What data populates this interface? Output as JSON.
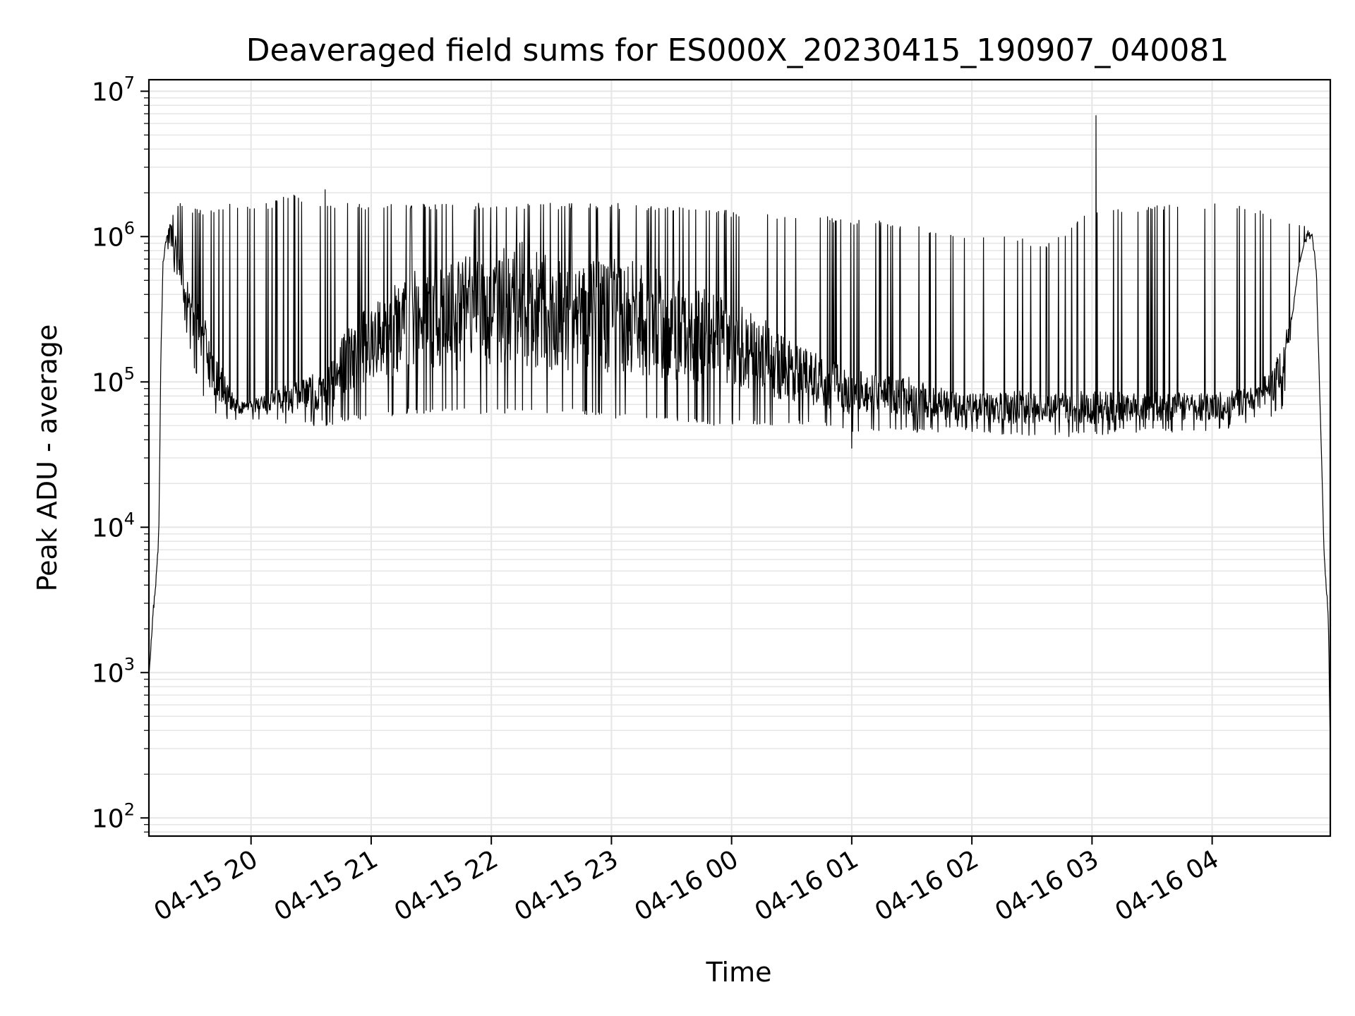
{
  "chart_data": {
    "type": "line",
    "title": "Deaveraged field sums for ES000X_20230415_190907_040081",
    "xlabel": "Time",
    "ylabel": "Peak ADU - average",
    "yscale": "log",
    "ylim": [
      75,
      12000000
    ],
    "xlim": [
      "2023-04-15 19:09",
      "2023-04-16 04:59"
    ],
    "grid": true,
    "line_color": "#000000",
    "grid_color": "#e6e6e6",
    "x_ticks": [
      {
        "label": "04-15 20",
        "value": "2023-04-15 20:00"
      },
      {
        "label": "04-15 21",
        "value": "2023-04-15 21:00"
      },
      {
        "label": "04-15 22",
        "value": "2023-04-15 22:00"
      },
      {
        "label": "04-15 23",
        "value": "2023-04-15 23:00"
      },
      {
        "label": "04-16 00",
        "value": "2023-04-16 00:00"
      },
      {
        "label": "04-16 01",
        "value": "2023-04-16 01:00"
      },
      {
        "label": "04-16 02",
        "value": "2023-04-16 02:00"
      },
      {
        "label": "04-16 03",
        "value": "2023-04-16 03:00"
      },
      {
        "label": "04-16 04",
        "value": "2023-04-16 04:00"
      }
    ],
    "y_ticks": [
      {
        "base": "10",
        "exp": "2",
        "value": 100
      },
      {
        "base": "10",
        "exp": "3",
        "value": 1000
      },
      {
        "base": "10",
        "exp": "4",
        "value": 10000
      },
      {
        "base": "10",
        "exp": "5",
        "value": 100000
      },
      {
        "base": "10",
        "exp": "6",
        "value": 1000000
      },
      {
        "base": "10",
        "exp": "7",
        "value": 10000000
      }
    ],
    "series": [
      {
        "x": [
          "2023-04-15 19:09",
          "2023-04-15 19:10",
          "2023-04-15 19:11",
          "2023-04-15 19:12",
          "2023-04-15 19:13",
          "2023-04-15 19:14",
          "2023-04-15 19:15",
          "2023-04-15 19:16",
          "2023-04-15 19:18",
          "2023-04-15 19:20",
          "2023-04-15 19:22",
          "2023-04-15 19:25",
          "2023-04-15 19:28",
          "2023-04-15 19:32",
          "2023-04-15 19:36",
          "2023-04-15 19:40",
          "2023-04-15 19:45",
          "2023-04-15 19:50",
          "2023-04-15 19:55",
          "2023-04-15 20:00",
          "2023-04-15 20:10",
          "2023-04-15 20:20",
          "2023-04-15 20:30",
          "2023-04-15 20:40",
          "2023-04-15 20:50",
          "2023-04-15 21:00",
          "2023-04-15 21:15",
          "2023-04-15 21:30",
          "2023-04-15 21:45",
          "2023-04-15 22:00",
          "2023-04-15 22:15",
          "2023-04-15 22:30",
          "2023-04-15 22:45",
          "2023-04-15 23:00",
          "2023-04-15 23:15",
          "2023-04-15 23:30",
          "2023-04-15 23:45",
          "2023-04-16 00:00",
          "2023-04-16 00:15",
          "2023-04-16 00:30",
          "2023-04-16 00:45",
          "2023-04-16 01:00",
          "2023-04-16 01:15",
          "2023-04-16 01:30",
          "2023-04-16 01:45",
          "2023-04-16 02:00",
          "2023-04-16 02:20",
          "2023-04-16 02:40",
          "2023-04-16 03:00",
          "2023-04-16 03:20",
          "2023-04-16 03:40",
          "2023-04-16 03:55",
          "2023-04-16 04:05",
          "2023-04-16 04:15",
          "2023-04-16 04:25",
          "2023-04-16 04:35",
          "2023-04-16 04:40",
          "2023-04-16 04:43",
          "2023-04-16 04:46",
          "2023-04-16 04:48",
          "2023-04-16 04:50",
          "2023-04-16 04:52",
          "2023-04-16 04:54",
          "2023-04-16 04:56",
          "2023-04-16 04:58",
          "2023-04-16 04:59"
        ],
        "baseline": [
          1000,
          1500,
          2500,
          3500,
          5000,
          10000,
          150000,
          650000,
          1000000,
          1250000,
          900000,
          700000,
          500000,
          400000,
          250000,
          150000,
          110000,
          80000,
          70000,
          70000,
          80000,
          85000,
          95000,
          110000,
          200000,
          250000,
          350000,
          400000,
          450000,
          500000,
          550000,
          450000,
          400000,
          450000,
          400000,
          350000,
          300000,
          250000,
          200000,
          150000,
          120000,
          100000,
          95000,
          90000,
          80000,
          75000,
          75000,
          75000,
          75000,
          75000,
          75000,
          75000,
          75000,
          80000,
          90000,
          150000,
          300000,
          600000,
          900000,
          1050000,
          1000000,
          600000,
          60000,
          6000,
          2500,
          300
        ],
        "upper_envelope": [
          1000,
          1500,
          2500,
          3500,
          5000,
          10000,
          150000,
          650000,
          1000000,
          1300000,
          1800000,
          1700000,
          1600000,
          1600000,
          1500000,
          1600000,
          1700000,
          1700000,
          1600000,
          1700000,
          1700000,
          2000000,
          1700000,
          1700000,
          1700000,
          1700000,
          1700000,
          1700000,
          1700000,
          1700000,
          1700000,
          1700000,
          1700000,
          1700000,
          1700000,
          1600000,
          1600000,
          1500000,
          1500000,
          1400000,
          1400000,
          1300000,
          1300000,
          1200000,
          1100000,
          1000000,
          1000000,
          900000,
          1600000,
          1600000,
          1700000,
          1700000,
          1700000,
          1700000,
          1500000,
          1400000,
          1300000,
          1300000,
          1300000,
          1100000,
          1000000,
          600000,
          60000,
          6000,
          2500,
          300
        ],
        "lower_envelope": [
          1000,
          1500,
          2500,
          3500,
          5000,
          10000,
          150000,
          650000,
          800000,
          700000,
          500000,
          350000,
          200000,
          120000,
          80000,
          65000,
          55000,
          55000,
          55000,
          55000,
          55000,
          50000,
          50000,
          50000,
          55000,
          55000,
          60000,
          60000,
          60000,
          60000,
          60000,
          60000,
          60000,
          55000,
          55000,
          55000,
          50000,
          50000,
          50000,
          50000,
          50000,
          45000,
          45000,
          45000,
          45000,
          45000,
          42000,
          42000,
          42000,
          45000,
          45000,
          45000,
          45000,
          50000,
          55000,
          60000,
          250000,
          600000,
          900000,
          1050000,
          1000000,
          600000,
          60000,
          6000,
          2500,
          300
        ]
      }
    ],
    "annotations": [
      {
        "type": "spike",
        "x": "2023-04-16 03:02",
        "y": 6800000
      },
      {
        "type": "spike",
        "x": "2023-04-15 20:37",
        "y": 2100000
      },
      {
        "type": "dip",
        "x": "2023-04-16 01:00",
        "y": 35000
      }
    ]
  }
}
